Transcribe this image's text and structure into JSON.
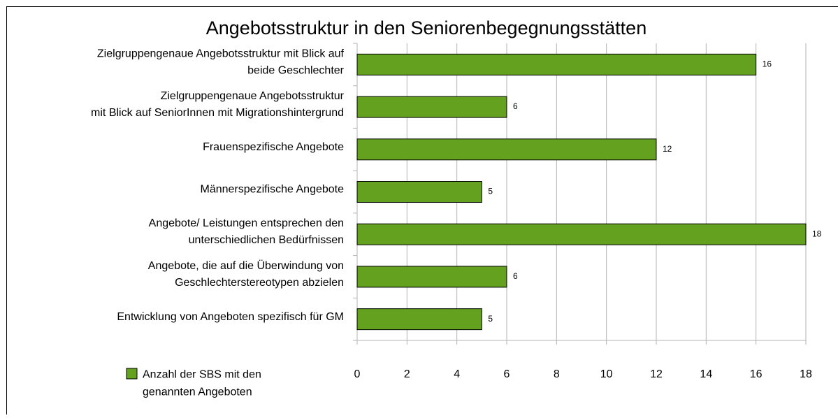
{
  "chart_data": {
    "type": "bar",
    "orientation": "horizontal",
    "title": "Angebotsstruktur in den Seniorenbegegnungsstätten",
    "categories": [
      "Zielgruppengenaue Angebotsstruktur mit Blick auf\nbeide Geschlechter",
      "Zielgruppengenaue Angebotsstruktur\nmit Blick auf SeniorInnen mit Migrationshintergrund",
      "Frauenspezifische Angebote",
      "Männerspezifische Angebote",
      "Angebote/ Leistungen entsprechen den\nunterschiedlichen Bedürfnissen",
      "Angebote, die auf die Überwindung von\nGeschlechterstereotypen abzielen",
      "Entwicklung von Angeboten spezifisch für GM"
    ],
    "series": [
      {
        "name": "Anzahl der SBS mit den\ngenannten Angeboten",
        "color": "#63a11f",
        "values": [
          16,
          6,
          12,
          5,
          18,
          6,
          5
        ]
      }
    ],
    "xlim": [
      0,
      18
    ],
    "xticks": [
      0,
      2,
      4,
      6,
      8,
      10,
      12,
      14,
      16,
      18
    ],
    "grid": true,
    "legend": "bottom-left"
  }
}
